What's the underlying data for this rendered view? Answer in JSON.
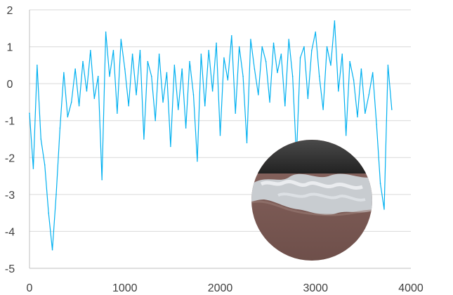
{
  "chart_data": {
    "type": "line",
    "title": "",
    "xlabel": "",
    "ylabel": "",
    "xlim": [
      0,
      4000
    ],
    "ylim": [
      -5,
      2
    ],
    "x_ticks": [
      0,
      1000,
      2000,
      3000,
      4000
    ],
    "y_ticks": [
      2,
      1,
      0,
      -1,
      -2,
      -3,
      -4,
      -5
    ],
    "x_tick_labels": [
      "0",
      "1000",
      "2000",
      "3000",
      "4000"
    ],
    "y_tick_labels": [
      "2",
      "1",
      "0",
      "-1",
      "-2",
      "-3",
      "-4",
      "-5"
    ],
    "grid": {
      "horizontal": true,
      "vertical": false
    },
    "legend": "none",
    "series": [
      {
        "color": "#00b0f0",
        "x": [
          0,
          40,
          80,
          120,
          160,
          200,
          240,
          280,
          320,
          360,
          400,
          440,
          480,
          520,
          560,
          600,
          640,
          680,
          720,
          760,
          800,
          840,
          880,
          920,
          960,
          1000,
          1040,
          1080,
          1120,
          1160,
          1200,
          1240,
          1280,
          1320,
          1360,
          1400,
          1440,
          1480,
          1520,
          1560,
          1600,
          1640,
          1680,
          1720,
          1760,
          1800,
          1840,
          1880,
          1920,
          1960,
          2000,
          2040,
          2080,
          2120,
          2160,
          2200,
          2240,
          2280,
          2320,
          2360,
          2400,
          2440,
          2480,
          2520,
          2560,
          2600,
          2640,
          2680,
          2720,
          2760,
          2800,
          2840,
          2880,
          2920,
          2960,
          3000,
          3040,
          3080,
          3120,
          3160,
          3200,
          3240,
          3280,
          3320,
          3360,
          3400,
          3440,
          3480,
          3520,
          3560,
          3600,
          3640,
          3680,
          3720,
          3760,
          3800
        ],
        "y": [
          -0.8,
          -2.3,
          0.5,
          -1.5,
          -2.2,
          -3.5,
          -4.5,
          -3.0,
          -1.2,
          0.3,
          -0.9,
          -0.5,
          0.4,
          -0.6,
          0.6,
          -0.2,
          0.9,
          -0.4,
          0.2,
          -2.6,
          1.4,
          0.2,
          0.9,
          -0.8,
          1.2,
          0.4,
          -0.6,
          0.8,
          -0.3,
          0.9,
          -1.5,
          0.6,
          0.2,
          -1.0,
          0.8,
          -0.5,
          0.3,
          -1.7,
          0.5,
          -0.7,
          0.4,
          -1.2,
          0.6,
          -0.3,
          -2.1,
          0.8,
          -0.6,
          0.9,
          -0.2,
          1.1,
          -1.4,
          0.7,
          0.1,
          1.3,
          -0.8,
          1.0,
          0.2,
          -1.6,
          1.2,
          0.4,
          -0.3,
          1.0,
          0.6,
          -0.5,
          1.1,
          0.3,
          0.8,
          -0.6,
          1.2,
          0.2,
          -2.0,
          0.7,
          1.0,
          -0.4,
          0.9,
          1.4,
          0.2,
          -0.7,
          1.0,
          0.5,
          1.7,
          -0.2,
          0.8,
          -1.4,
          0.6,
          0.1,
          -0.9,
          0.4,
          -0.8,
          -0.3,
          0.3,
          -1.1,
          -2.7,
          -3.4,
          0.5,
          -0.7
        ]
      }
    ]
  }
}
